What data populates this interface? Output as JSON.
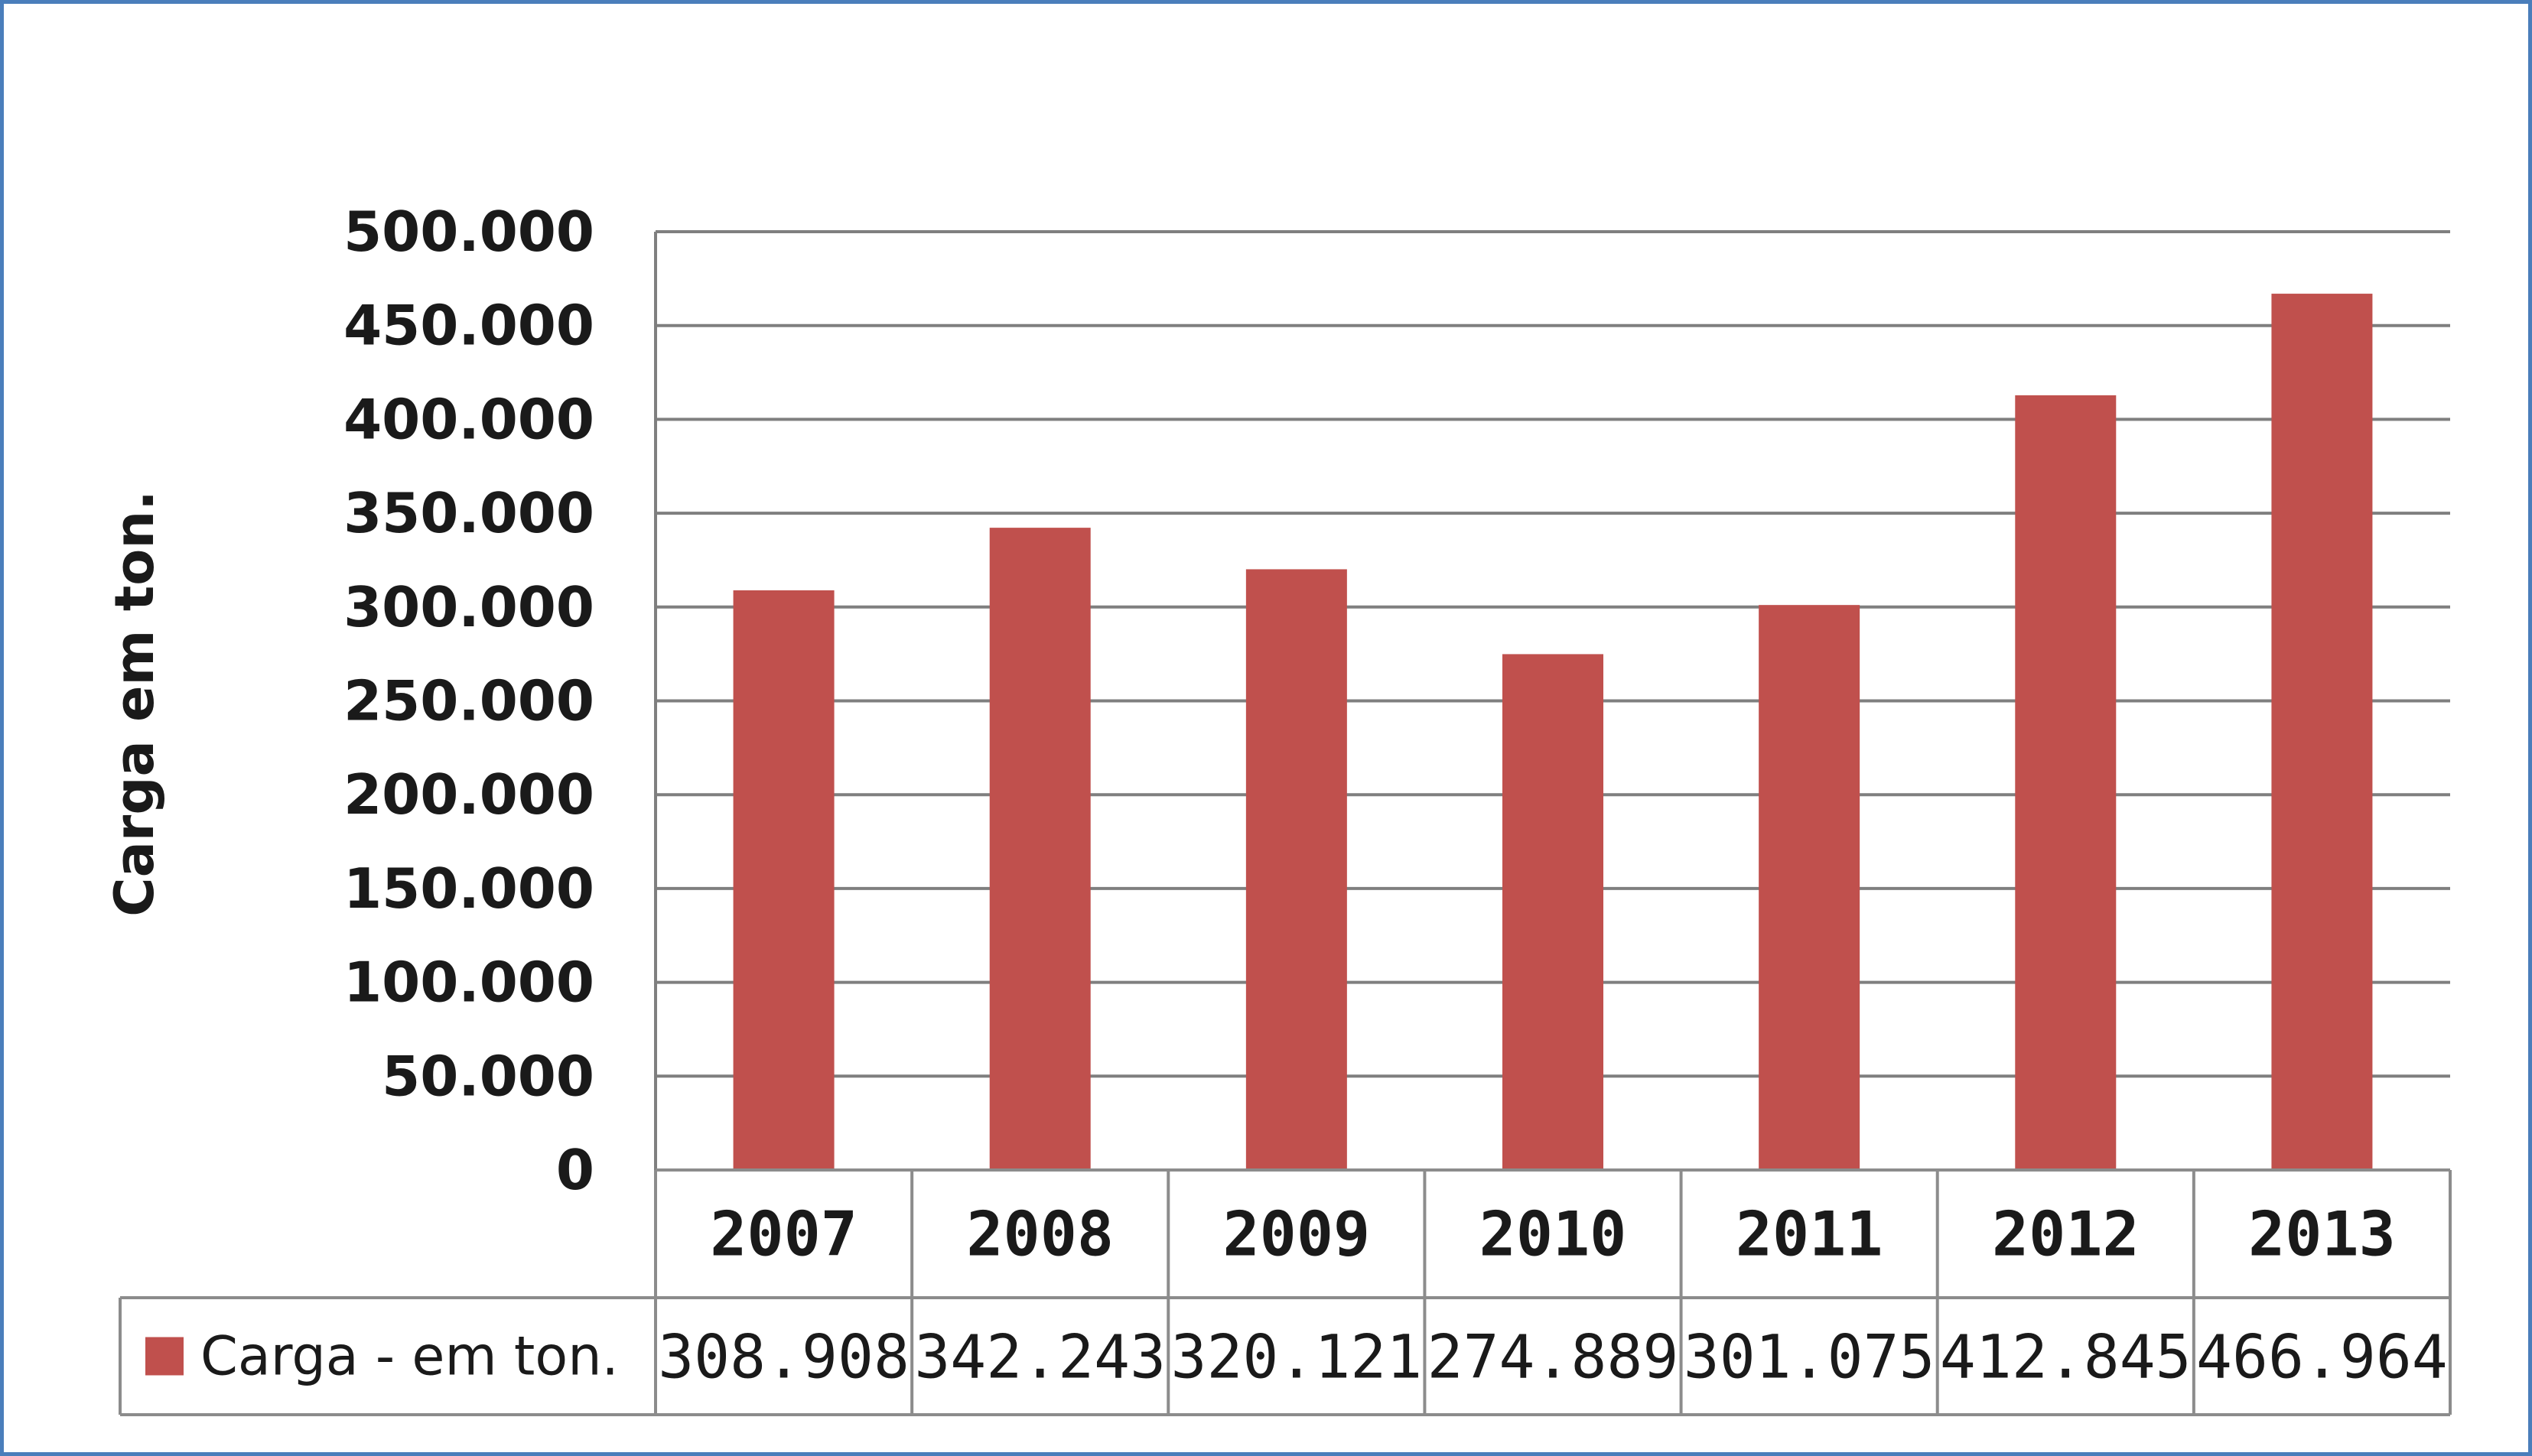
{
  "chart_data": {
    "type": "bar",
    "title": "",
    "xlabel": "",
    "ylabel": "Carga em ton.",
    "categories": [
      "2007",
      "2008",
      "2009",
      "2010",
      "2011",
      "2012",
      "2013"
    ],
    "series": [
      {
        "name": "Carga - em ton.",
        "values": [
          308908,
          342243,
          320121,
          274889,
          301075,
          412845,
          466964
        ],
        "labels": [
          "308.908",
          "342.243",
          "320.121",
          "274.889",
          "301.075",
          "412.845",
          "466.964"
        ],
        "color": "#c0504d"
      }
    ],
    "ylim": [
      0,
      500000
    ],
    "yticks": [
      0,
      50000,
      100000,
      150000,
      200000,
      250000,
      300000,
      350000,
      400000,
      450000,
      500000
    ],
    "ytick_labels": [
      "0",
      "50.000",
      "100.000",
      "150.000",
      "200.000",
      "250.000",
      "300.000",
      "350.000",
      "400.000",
      "450.000",
      "500.000"
    ],
    "grid": true,
    "legend": "data-table",
    "data_table": true
  },
  "colors": {
    "bar": "#c0504d",
    "grid": "#7f7f7f",
    "frame": "#4a7ebb",
    "table": "#8c8c8c"
  }
}
